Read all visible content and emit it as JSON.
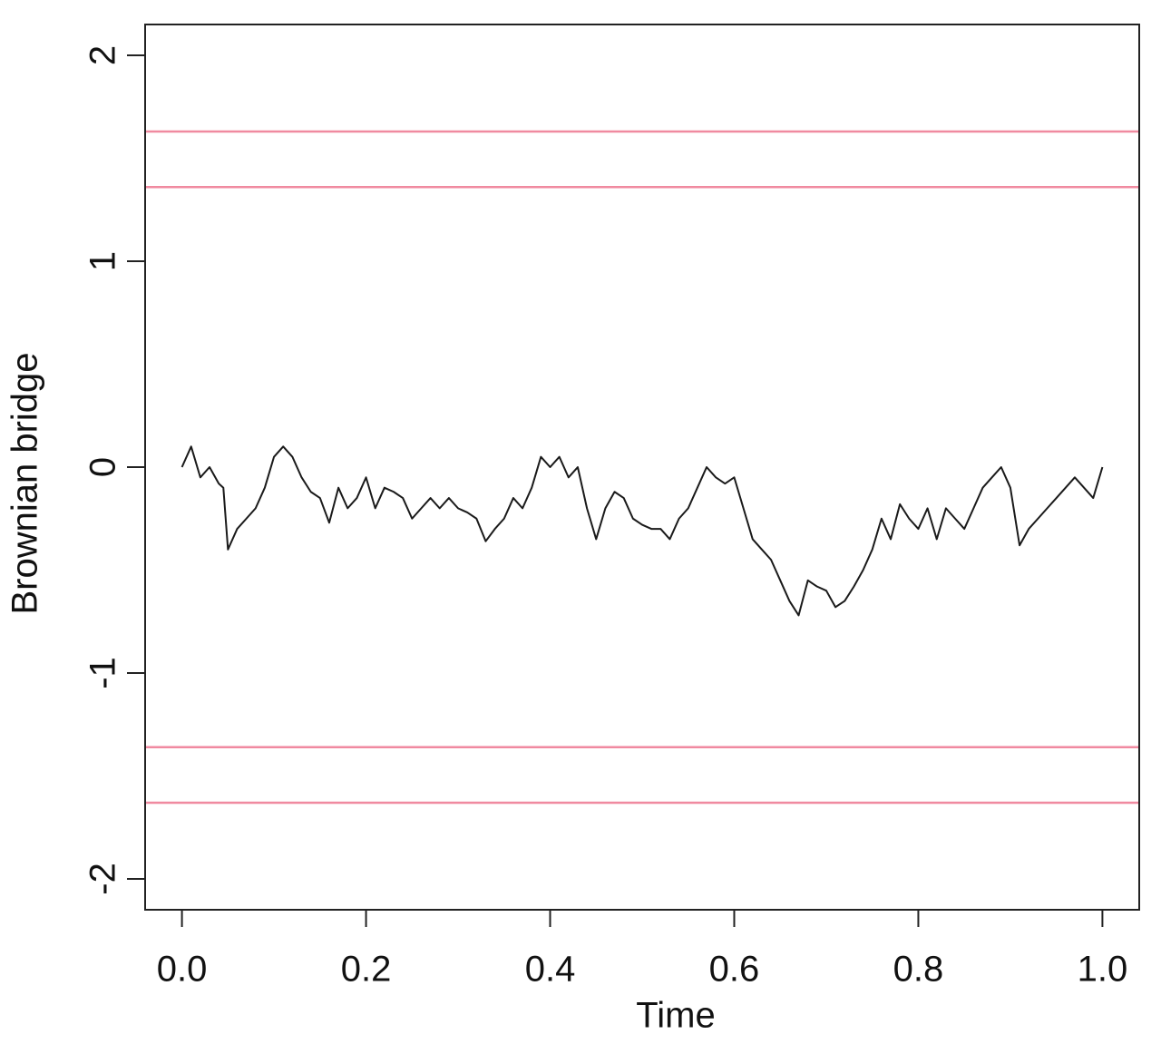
{
  "chart_data": {
    "type": "line",
    "xlabel": "Time",
    "ylabel": "Brownian bridge",
    "x": [
      0,
      0.01,
      0.02,
      0.03,
      0.04,
      0.045,
      0.05,
      0.06,
      0.07,
      0.08,
      0.09,
      0.1,
      0.11,
      0.12,
      0.13,
      0.14,
      0.15,
      0.16,
      0.17,
      0.18,
      0.19,
      0.2,
      0.21,
      0.22,
      0.23,
      0.24,
      0.25,
      0.26,
      0.27,
      0.28,
      0.29,
      0.3,
      0.31,
      0.32,
      0.33,
      0.34,
      0.35,
      0.36,
      0.37,
      0.38,
      0.39,
      0.4,
      0.41,
      0.42,
      0.43,
      0.44,
      0.45,
      0.46,
      0.47,
      0.48,
      0.49,
      0.5,
      0.51,
      0.52,
      0.53,
      0.54,
      0.55,
      0.56,
      0.57,
      0.58,
      0.59,
      0.6,
      0.61,
      0.62,
      0.63,
      0.64,
      0.65,
      0.66,
      0.67,
      0.68,
      0.69,
      0.7,
      0.71,
      0.72,
      0.73,
      0.74,
      0.75,
      0.76,
      0.77,
      0.78,
      0.79,
      0.8,
      0.81,
      0.82,
      0.83,
      0.84,
      0.85,
      0.86,
      0.87,
      0.88,
      0.89,
      0.9,
      0.91,
      0.92,
      0.93,
      0.94,
      0.95,
      0.96,
      0.97,
      0.98,
      0.99,
      1
    ],
    "series": [
      {
        "color": "#1a1a1a",
        "values": [
          0,
          0.1,
          -0.05,
          0,
          -0.08,
          -0.1,
          -0.4,
          -0.3,
          -0.25,
          -0.2,
          -0.1,
          0.05,
          0.1,
          0.05,
          -0.05,
          -0.12,
          -0.15,
          -0.27,
          -0.1,
          -0.2,
          -0.15,
          -0.05,
          -0.2,
          -0.1,
          -0.12,
          -0.15,
          -0.25,
          -0.2,
          -0.15,
          -0.2,
          -0.15,
          -0.2,
          -0.22,
          -0.25,
          -0.36,
          -0.3,
          -0.25,
          -0.15,
          -0.2,
          -0.1,
          0.05,
          0,
          0.05,
          -0.05,
          0,
          -0.2,
          -0.35,
          -0.2,
          -0.12,
          -0.15,
          -0.25,
          -0.28,
          -0.3,
          -0.3,
          -0.35,
          -0.25,
          -0.2,
          -0.1,
          0,
          -0.05,
          -0.08,
          -0.05,
          -0.2,
          -0.35,
          -0.4,
          -0.45,
          -0.55,
          -0.65,
          -0.72,
          -0.55,
          -0.58,
          -0.6,
          -0.68,
          -0.65,
          -0.58,
          -0.5,
          -0.4,
          -0.25,
          -0.35,
          -0.18,
          -0.25,
          -0.3,
          -0.2,
          -0.35,
          -0.2,
          -0.25,
          -0.3,
          -0.2,
          -0.1,
          -0.05,
          0,
          -0.1,
          -0.38,
          -0.3,
          -0.25,
          -0.2,
          -0.15,
          -0.1,
          -0.05,
          -0.1,
          -0.15,
          0
        ]
      }
    ],
    "reference_lines": {
      "color": "#f08aa0",
      "values": [
        1.63,
        1.36,
        -1.36,
        -1.63
      ]
    },
    "xlim": [
      -0.04,
      1.04
    ],
    "ylim": [
      -2.15,
      2.15
    ],
    "xticks": [
      {
        "value": 0,
        "label": "0.0"
      },
      0.2,
      0.4,
      0.6,
      0.8,
      {
        "value": 1,
        "label": "1.0"
      }
    ],
    "yticks": [
      -2,
      -1,
      0,
      1,
      2
    ]
  }
}
